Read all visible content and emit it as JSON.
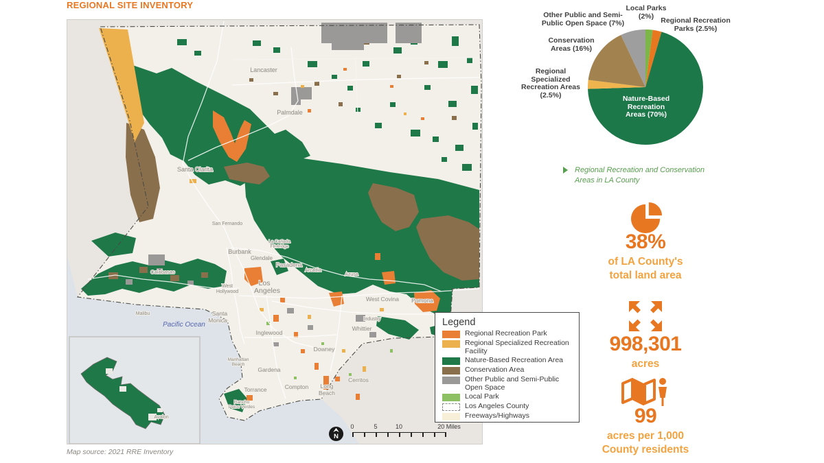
{
  "page": {
    "title": "REGIONAL SITE INVENTORY",
    "map_source": "Map source: 2021 RRE Inventory"
  },
  "colors": {
    "accent_orange": "#e87722",
    "accent_amber": "#f2a340",
    "caption_green": "#579e4e",
    "map_green": "#1e7848",
    "map_brown": "#8a6f4c",
    "map_orange": "#e87f35",
    "map_yellow": "#ecb04c",
    "map_gray": "#9b9998",
    "map_light_green": "#8dc063",
    "ocean": "#dde3e8"
  },
  "map": {
    "labels": {
      "lancaster": "Lancaster",
      "palmdale": "Palmdale",
      "santa_clarita": "Santa Clarita",
      "san_fernando": "San Fernando",
      "burbank": "Burbank",
      "glendale": "Glendale",
      "la_canada_1": "La Cañada",
      "la_canada_2": "Flintridge",
      "pasadena": "Pasadena",
      "arcadia": "Arcadia",
      "azusa": "Azusa",
      "los_1": "Los",
      "los_2": "Angeles",
      "west_hollywood_1": "West",
      "west_hollywood_2": "Hollywood",
      "west_covina": "West Covina",
      "pomona": "Pomona",
      "santa_monica_1": "Santa",
      "santa_monica_2": "Monica",
      "inglewood": "Inglewood",
      "whittier": "Whittier",
      "industry": "Industry",
      "downey": "Downey",
      "manhattan_1": "Manhattan",
      "manhattan_2": "Beach",
      "gardena": "Gardena",
      "compton": "Compton",
      "cerritos": "Cerritos",
      "torrance": "Torrance",
      "long_beach_1": "Long",
      "long_beach_2": "Beach",
      "rancho_1": "Rancho",
      "rancho_2": "Palos Verdes",
      "calabasas": "Calabasas",
      "malibu": "Malibu",
      "pacific_ocean": "Pacific Ocean",
      "avalon": "Avalon"
    },
    "scalebar": {
      "t0": "0",
      "t5": "5",
      "t10": "10",
      "t20": "20 Miles"
    },
    "north_label": "N"
  },
  "legend": {
    "title": "Legend",
    "items": [
      {
        "label": "Regional Recreation Park",
        "color": "#e87f35"
      },
      {
        "label": "Regional Specialized Recreation Facility",
        "color": "#ecb04c"
      },
      {
        "label": "Nature-Based Recreation Area",
        "color": "#1e7848"
      },
      {
        "label": "Conservation Area",
        "color": "#8a6f4c"
      },
      {
        "label": "Other Public and Semi-Public Open Space",
        "color": "#9b9998"
      },
      {
        "label": "Local Park",
        "color": "#8dc063"
      },
      {
        "label": "Los Angeles County",
        "color": "#ffffff"
      },
      {
        "label": "Freeways/Highways",
        "color": "#f8efd8"
      }
    ]
  },
  "chart_data": {
    "type": "pie",
    "start_angle_deg": -90,
    "direction": "clockwise",
    "slices": [
      {
        "name": "Local Parks",
        "pct": 2,
        "color": "#7cb648",
        "label_lines": [
          "Local Parks",
          "(2%)"
        ]
      },
      {
        "name": "Regional Recreation Parks",
        "pct": 2.5,
        "color": "#e87820",
        "label_lines": [
          "Regional Recreation",
          "Parks (2.5%)"
        ]
      },
      {
        "name": "Nature-Based Recreation Areas",
        "pct": 70,
        "color": "#1d7849",
        "label_lines": [
          "Nature-Based",
          "Recreation",
          "Areas (70%)"
        ]
      },
      {
        "name": "Regional Specialized Recreation Areas",
        "pct": 2.5,
        "color": "#f0b44e",
        "label_lines": [
          "Regional",
          "Specialized",
          "Recreation Areas",
          "(2.5%)"
        ]
      },
      {
        "name": "Conservation Areas",
        "pct": 16,
        "color": "#a28350",
        "label_lines": [
          "Conservation",
          "Areas (16%)"
        ]
      },
      {
        "name": "Other Public and Semi-Public Open Space",
        "pct": 7,
        "color": "#9e9e9e",
        "label_lines": [
          "Other Public and Semi-",
          "Public Open Space (7%)"
        ]
      }
    ]
  },
  "caption": {
    "line1": "Regional Recreation and Conservation",
    "line2": "Areas in LA County"
  },
  "stats": [
    {
      "value": "38%",
      "icon": "pie-chart-icon",
      "label_lines": [
        "of LA County's",
        "total land area"
      ]
    },
    {
      "value": "998,301",
      "icon": "expand-arrows-icon",
      "label_lines": [
        "acres"
      ]
    },
    {
      "value": "99",
      "icon": "map-person-icon",
      "label_lines": [
        "acres per 1,000",
        "County residents"
      ]
    }
  ]
}
